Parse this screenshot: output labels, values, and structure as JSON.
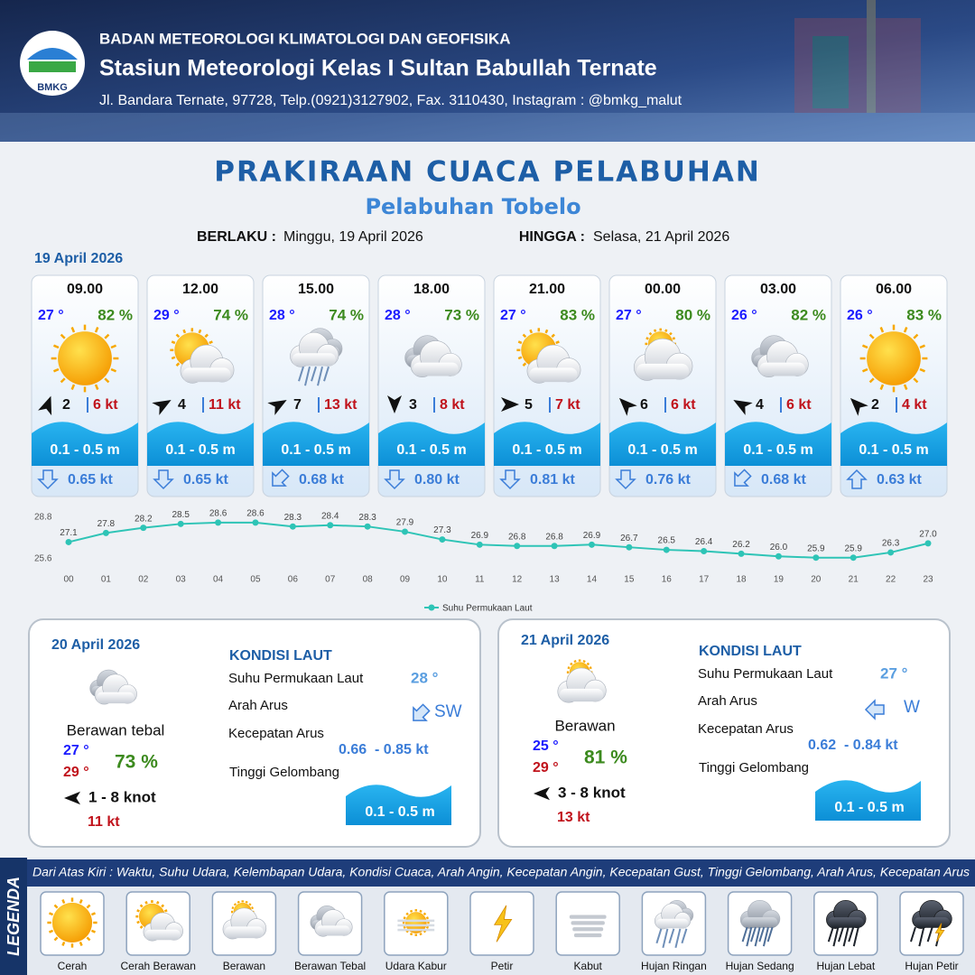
{
  "header": {
    "agency": "BADAN METEOROLOGI KLIMATOLOGI DAN GEOFISIKA",
    "station": "Stasiun Meteorologi Kelas I Sultan Babullah Ternate",
    "address": "Jl. Bandara Ternate, 97728, Telp.(0921)3127902, Fax. 3110430, Instagram : @bmkg_malut",
    "logo_text": "BMKG"
  },
  "title": "PRAKIRAAN CUACA PELABUHAN",
  "subtitle": "Pelabuhan Tobelo",
  "validity": {
    "from_label": "BERLAKU :",
    "from": "Minggu, 19 April 2026",
    "to_label": "HINGGA :",
    "to": "Selasa, 21 April 2026"
  },
  "day1_date": "19 April 2026",
  "slots": [
    {
      "time": "09.00",
      "temp": "27 °",
      "humidity": "82 %",
      "wind": "2",
      "gust": "6 kt",
      "wave": "0.1 - 0.5 m",
      "current": "0.65 kt"
    },
    {
      "time": "12.00",
      "temp": "29 °",
      "humidity": "74 %",
      "wind": "4",
      "gust": "11 kt",
      "wave": "0.1 - 0.5 m",
      "current": "0.65 kt"
    },
    {
      "time": "15.00",
      "temp": "28 °",
      "humidity": "74 %",
      "wind": "7",
      "gust": "13 kt",
      "wave": "0.1 - 0.5 m",
      "current": "0.68 kt"
    },
    {
      "time": "18.00",
      "temp": "28 °",
      "humidity": "73 %",
      "wind": "3",
      "gust": "8 kt",
      "wave": "0.1 - 0.5 m",
      "current": "0.80 kt"
    },
    {
      "time": "21.00",
      "temp": "27 °",
      "humidity": "83 %",
      "wind": "5",
      "gust": "7 kt",
      "wave": "0.1 - 0.5 m",
      "current": "0.81 kt"
    },
    {
      "time": "00.00",
      "temp": "27 °",
      "humidity": "80 %",
      "wind": "6",
      "gust": "6 kt",
      "wave": "0.1 - 0.5 m",
      "current": "0.76 kt"
    },
    {
      "time": "03.00",
      "temp": "26 °",
      "humidity": "82 %",
      "wind": "4",
      "gust": "6 kt",
      "wave": "0.1 - 0.5 m",
      "current": "0.68 kt"
    },
    {
      "time": "06.00",
      "temp": "26 °",
      "humidity": "83 %",
      "wind": "2",
      "gust": "4 kt",
      "wave": "0.1 - 0.5 m",
      "current": "0.63 kt"
    }
  ],
  "chart_data": {
    "type": "line",
    "categories": [
      "00",
      "01",
      "02",
      "03",
      "04",
      "05",
      "06",
      "07",
      "08",
      "09",
      "10",
      "11",
      "12",
      "13",
      "14",
      "15",
      "16",
      "17",
      "18",
      "19",
      "20",
      "21",
      "22",
      "23"
    ],
    "series": [
      {
        "name": "Suhu Permukaan Laut",
        "color": "#2ec4b6",
        "values": [
          27.1,
          27.8,
          28.2,
          28.5,
          28.6,
          28.6,
          28.3,
          28.4,
          28.3,
          27.9,
          27.3,
          26.9,
          26.8,
          26.8,
          26.9,
          26.7,
          26.5,
          26.4,
          26.2,
          26.0,
          25.9,
          25.9,
          26.3,
          27.0
        ],
        "value_labels": [
          "27.1",
          "27.8",
          "28.2",
          "28.5",
          "28.6",
          "28.6",
          "28.3",
          "28.4",
          "28.3",
          "27.9",
          "27.3",
          "26.9",
          "26.8",
          "26.8",
          "26.9",
          "26.7",
          "26.5",
          "26.4",
          "26.2",
          "26.0",
          "25.9",
          "25.9",
          "26.3",
          "27.0"
        ]
      }
    ],
    "ylim": [
      25.6,
      28.8
    ],
    "yticks": [
      25.6,
      28.8
    ],
    "grid": false
  },
  "days": [
    {
      "date": "20 April 2026",
      "condition": "Berawan tebal",
      "temp_min": "27 °",
      "temp_max": "29 °",
      "humidity": "73 %",
      "wind": "1 - 8 knot",
      "gust": "11 kt",
      "sea_heading": "KONDISI LAUT",
      "sst_label": "Suhu Permukaan Laut",
      "sst": "28 °",
      "dir_label": "Arah Arus",
      "dir": "SW",
      "speed_label": "Kecepatan Arus",
      "speed": "0.66  - 0.85 kt",
      "wave_label": "Tinggi Gelombang",
      "wave": "0.1 - 0.5 m"
    },
    {
      "date": "21 April 2026",
      "condition": "Berawan",
      "temp_min": "25 °",
      "temp_max": "29 °",
      "humidity": "81 %",
      "wind": "3 - 8 knot",
      "gust": "13 kt",
      "sea_heading": "KONDISI LAUT",
      "sst_label": "Suhu Permukaan Laut",
      "sst": "27 °",
      "dir_label": "Arah Arus",
      "dir": "W",
      "speed_label": "Kecepatan Arus",
      "speed": "0.62  - 0.84 kt",
      "wave_label": "Tinggi Gelombang",
      "wave": "0.1 - 0.5 m"
    }
  ],
  "legend": {
    "title": "LEGENDA",
    "description": "Dari Atas Kiri : Waktu, Suhu Udara, Kelembapan Udara, Kondisi Cuaca, Arah Angin, Kecepatan Angin, Kecepatan Gust, Tinggi Gelombang, Arah Arus, Kecepatan Arus",
    "items": [
      "Cerah",
      "Cerah Berawan",
      "Berawan",
      "Berawan Tebal",
      "Udara Kabur",
      "Petir",
      "Kabut",
      "Hujan Ringan",
      "Hujan Sedang",
      "Hujan Lebat",
      "Hujan Petir"
    ]
  }
}
